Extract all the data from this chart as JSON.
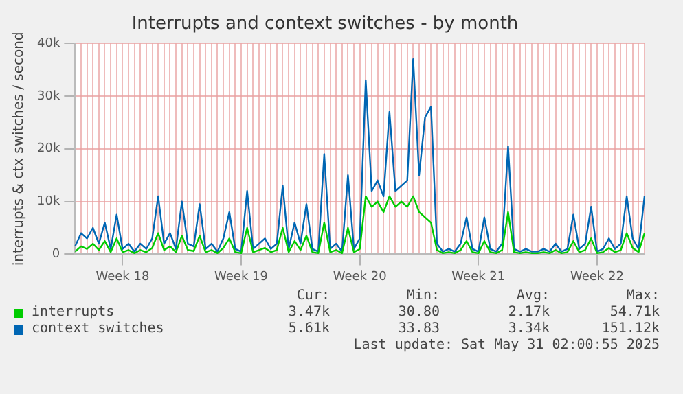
{
  "chart_data": {
    "type": "line",
    "title": "Interrupts and context switches - by month",
    "ylabel": "interrupts & ctx switches / second",
    "categories": [
      null,
      null,
      null,
      null,
      null,
      null,
      null,
      null,
      "Week 18",
      null,
      null,
      null,
      null,
      null,
      null,
      null,
      null,
      null,
      null,
      null,
      null,
      null,
      null,
      null,
      null,
      null,
      null,
      null,
      "Week 19",
      null,
      null,
      null,
      null,
      null,
      null,
      null,
      null,
      null,
      null,
      null,
      null,
      null,
      null,
      null,
      null,
      null,
      null,
      null,
      "Week 20",
      null,
      null,
      null,
      null,
      null,
      null,
      null,
      null,
      null,
      null,
      null,
      null,
      null,
      null,
      null,
      null,
      null,
      null,
      null,
      "Week 21",
      null,
      null,
      null,
      null,
      null,
      null,
      null,
      null,
      null,
      null,
      null,
      null,
      null,
      null,
      null,
      null,
      null,
      null,
      null,
      "Week 22",
      null,
      null,
      null,
      null,
      null,
      null,
      null,
      null
    ],
    "series": [
      {
        "name": "interrupts",
        "color": "#00cc00",
        "values": [
          500,
          1500,
          1000,
          2000,
          800,
          2500,
          400,
          3000,
          400,
          800,
          200,
          800,
          400,
          1200,
          4000,
          800,
          1500,
          400,
          3500,
          800,
          600,
          3500,
          400,
          800,
          200,
          1200,
          3000,
          400,
          200,
          5000,
          400,
          800,
          1200,
          400,
          800,
          5000,
          400,
          2500,
          800,
          3500,
          400,
          200,
          6000,
          400,
          800,
          200,
          5000,
          400,
          1000,
          11000,
          9000,
          10000,
          8000,
          11000,
          9000,
          10000,
          9000,
          11000,
          8000,
          7000,
          6000,
          800,
          200,
          400,
          200,
          800,
          2500,
          400,
          200,
          2500,
          400,
          200,
          800,
          8000,
          400,
          200,
          400,
          200,
          200,
          400,
          200,
          800,
          200,
          400,
          2500,
          400,
          800,
          3000,
          200,
          400,
          1200,
          400,
          800,
          4000,
          1200,
          400,
          4000
        ]
      },
      {
        "name": "context switches",
        "color": "#0066b3",
        "values": [
          1500,
          4000,
          3000,
          5000,
          2000,
          6000,
          1000,
          7500,
          1000,
          2000,
          500,
          2000,
          1000,
          3000,
          11000,
          2000,
          4000,
          1000,
          10000,
          2000,
          1500,
          9500,
          1000,
          2000,
          500,
          3000,
          8000,
          1000,
          500,
          12000,
          1000,
          2000,
          3000,
          1000,
          2000,
          13000,
          1000,
          6000,
          2000,
          9500,
          1000,
          500,
          19000,
          1000,
          2000,
          500,
          15000,
          1000,
          3000,
          33000,
          12000,
          14000,
          11000,
          27000,
          12000,
          13000,
          14000,
          37000,
          15000,
          26000,
          28000,
          2000,
          500,
          1000,
          500,
          2000,
          7000,
          1000,
          500,
          7000,
          1000,
          500,
          2000,
          20500,
          1000,
          500,
          1000,
          500,
          500,
          1000,
          500,
          2000,
          500,
          1000,
          7500,
          1000,
          2000,
          9000,
          500,
          1000,
          3000,
          1000,
          2000,
          11000,
          3000,
          1000,
          11000
        ]
      }
    ],
    "ylim": [
      0,
      40000
    ],
    "yticks": [
      0,
      {
        "value": 10000,
        "label": "10k"
      },
      {
        "value": 20000,
        "label": "20k"
      },
      {
        "value": 30000,
        "label": "30k"
      },
      {
        "value": 40000,
        "label": "40k"
      }
    ],
    "grid": true,
    "legend": "bottom",
    "marker": "none",
    "line_style": "solid",
    "annotations": [
      "Cur:",
      "Min:",
      "Avg:",
      "Max:",
      "3.47k",
      "30.80",
      "2.17k",
      "54.71k",
      "5.61k",
      "33.83",
      "3.34k",
      "151.12k",
      "Last update: Sat May 31 02:00:55 2025"
    ]
  }
}
